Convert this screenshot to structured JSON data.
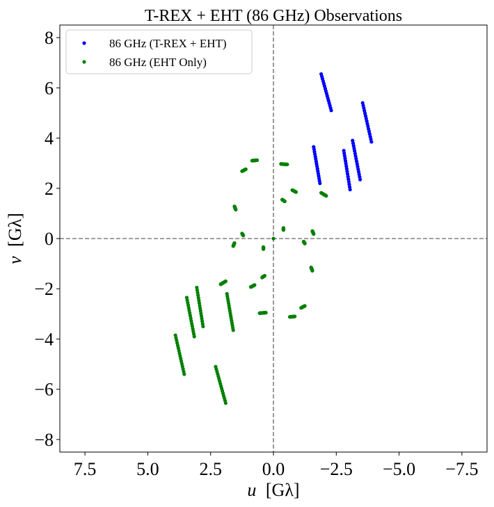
{
  "chart_data": {
    "type": "scatter",
    "title": "T-REX + EHT (86 GHz) Observations",
    "xlabel_main": "u",
    "xlabel_unit": "[Gλ]",
    "ylabel_main": "v",
    "ylabel_unit": "[Gλ]",
    "xlim": [
      8.5,
      -8.5
    ],
    "ylim": [
      -8.5,
      8.5
    ],
    "x_inverted": true,
    "xticks": [
      7.5,
      5.0,
      2.5,
      0.0,
      -2.5,
      -5.0,
      -7.5
    ],
    "xtick_labels": [
      "7.5",
      "5.0",
      "2.5",
      "0.0",
      "−2.5",
      "−5.0",
      "−7.5"
    ],
    "yticks": [
      8,
      6,
      4,
      2,
      0,
      -2,
      -4,
      -6,
      -8
    ],
    "ytick_labels": [
      "8",
      "6",
      "4",
      "2",
      "0",
      "−2",
      "−4",
      "−6",
      "−8"
    ],
    "grid": false,
    "reference_lines": [
      {
        "axis": "x",
        "value": 0
      },
      {
        "axis": "y",
        "value": 0
      }
    ],
    "legend_position": "top-left",
    "series": [
      {
        "name": "86 GHz (T-REX + EHT)",
        "color": "#0000ff",
        "tracks": [
          {
            "start": [
              -1.9,
              6.55
            ],
            "end": [
              -2.3,
              5.1
            ]
          },
          {
            "start": [
              -3.55,
              5.4
            ],
            "end": [
              -3.9,
              3.85
            ]
          },
          {
            "start": [
              -1.6,
              3.65
            ],
            "end": [
              -1.85,
              2.2
            ]
          },
          {
            "start": [
              -2.8,
              3.5
            ],
            "end": [
              -3.05,
              1.95
            ]
          },
          {
            "start": [
              -3.15,
              3.9
            ],
            "end": [
              -3.45,
              2.35
            ]
          }
        ]
      },
      {
        "name": "86 GHz (EHT Only)",
        "color": "#008000",
        "tracks": [
          {
            "start": [
              1.9,
              -6.55
            ],
            "end": [
              2.3,
              -5.1
            ]
          },
          {
            "start": [
              3.55,
              -5.4
            ],
            "end": [
              3.9,
              -3.85
            ]
          },
          {
            "start": [
              1.6,
              -3.65
            ],
            "end": [
              1.85,
              -2.2
            ]
          },
          {
            "start": [
              2.8,
              -3.5
            ],
            "end": [
              3.05,
              -1.95
            ]
          },
          {
            "start": [
              3.15,
              -3.9
            ],
            "end": [
              3.45,
              -2.35
            ]
          },
          {
            "start": [
              0.85,
              3.1
            ],
            "end": [
              0.65,
              3.12
            ]
          },
          {
            "start": [
              1.25,
              2.68
            ],
            "end": [
              1.1,
              2.76
            ]
          },
          {
            "start": [
              -0.3,
              2.97
            ],
            "end": [
              -0.55,
              2.95
            ]
          },
          {
            "start": [
              -0.75,
              1.93
            ],
            "end": [
              -0.9,
              1.85
            ]
          },
          {
            "start": [
              -1.9,
              1.82
            ],
            "end": [
              -2.1,
              1.7
            ]
          },
          {
            "start": [
              1.55,
              1.28
            ],
            "end": [
              1.5,
              1.15
            ]
          },
          {
            "start": [
              -0.35,
              1.55
            ],
            "end": [
              -0.45,
              1.48
            ]
          },
          {
            "start": [
              -1.55,
              0.3
            ],
            "end": [
              -1.6,
              0.18
            ]
          },
          {
            "start": [
              1.25,
              0.2
            ],
            "end": [
              1.2,
              0.12
            ]
          },
          {
            "start": [
              -0.4,
              0.42
            ],
            "end": [
              -0.4,
              0.34
            ]
          },
          {
            "start": [
              0.0,
              0.0
            ],
            "end": [
              0.0,
              0.0
            ]
          },
          {
            "start": [
              0.4,
              -0.34
            ],
            "end": [
              0.4,
              -0.42
            ]
          },
          {
            "start": [
              1.55,
              -0.18
            ],
            "end": [
              1.6,
              -0.3
            ]
          },
          {
            "start": [
              -1.2,
              -0.12
            ],
            "end": [
              -1.25,
              -0.2
            ]
          },
          {
            "start": [
              -1.5,
              -1.15
            ],
            "end": [
              -1.55,
              -1.28
            ]
          },
          {
            "start": [
              0.35,
              -1.48
            ],
            "end": [
              0.45,
              -1.55
            ]
          },
          {
            "start": [
              1.9,
              -1.7
            ],
            "end": [
              2.1,
              -1.82
            ]
          },
          {
            "start": [
              0.75,
              -1.85
            ],
            "end": [
              0.9,
              -1.93
            ]
          },
          {
            "start": [
              0.3,
              -2.95
            ],
            "end": [
              0.55,
              -2.97
            ]
          },
          {
            "start": [
              -1.1,
              -2.76
            ],
            "end": [
              -1.25,
              -2.68
            ]
          },
          {
            "start": [
              -0.65,
              -3.12
            ],
            "end": [
              -0.85,
              -3.1
            ]
          }
        ]
      }
    ]
  }
}
